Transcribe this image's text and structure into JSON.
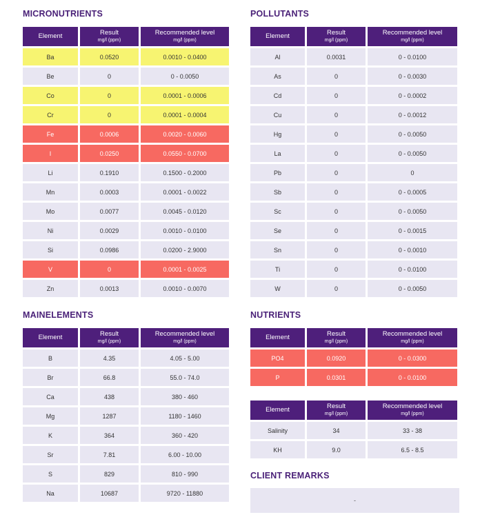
{
  "columns": {
    "element": "Element",
    "result": "Result",
    "result_unit": "mg/l (ppm)",
    "recommended": "Recommended level",
    "recommended_unit": "mg/l (ppm)"
  },
  "micronutrients": {
    "title": "MICRONUTRIENTS",
    "rows": [
      {
        "element": "Ba",
        "result": "0.0520",
        "recommended": "0.0010 - 0.0400",
        "status": "warn"
      },
      {
        "element": "Be",
        "result": "0",
        "recommended": "0 - 0.0050",
        "status": "ok"
      },
      {
        "element": "Co",
        "result": "0",
        "recommended": "0.0001 - 0.0006",
        "status": "warn"
      },
      {
        "element": "Cr",
        "result": "0",
        "recommended": "0.0001 - 0.0004",
        "status": "warn"
      },
      {
        "element": "Fe",
        "result": "0.0006",
        "recommended": "0.0020 - 0.0060",
        "status": "bad"
      },
      {
        "element": "I",
        "result": "0.0250",
        "recommended": "0.0550 - 0.0700",
        "status": "bad"
      },
      {
        "element": "Li",
        "result": "0.1910",
        "recommended": "0.1500 - 0.2000",
        "status": "ok"
      },
      {
        "element": "Mn",
        "result": "0.0003",
        "recommended": "0.0001 - 0.0022",
        "status": "ok"
      },
      {
        "element": "Mo",
        "result": "0.0077",
        "recommended": "0.0045 - 0.0120",
        "status": "ok"
      },
      {
        "element": "Ni",
        "result": "0.0029",
        "recommended": "0.0010 - 0.0100",
        "status": "ok"
      },
      {
        "element": "Si",
        "result": "0.0986",
        "recommended": "0.0200 - 2.9000",
        "status": "ok"
      },
      {
        "element": "V",
        "result": "0",
        "recommended": "0.0001 - 0.0025",
        "status": "bad"
      },
      {
        "element": "Zn",
        "result": "0.0013",
        "recommended": "0.0010 - 0.0070",
        "status": "ok"
      }
    ]
  },
  "pollutants": {
    "title": "POLLUTANTS",
    "rows": [
      {
        "element": "Al",
        "result": "0.0031",
        "recommended": "0 - 0.0100",
        "status": "ok"
      },
      {
        "element": "As",
        "result": "0",
        "recommended": "0 - 0.0030",
        "status": "ok"
      },
      {
        "element": "Cd",
        "result": "0",
        "recommended": "0 - 0.0002",
        "status": "ok"
      },
      {
        "element": "Cu",
        "result": "0",
        "recommended": "0 - 0.0012",
        "status": "ok"
      },
      {
        "element": "Hg",
        "result": "0",
        "recommended": "0 - 0.0050",
        "status": "ok"
      },
      {
        "element": "La",
        "result": "0",
        "recommended": "0 - 0.0050",
        "status": "ok"
      },
      {
        "element": "Pb",
        "result": "0",
        "recommended": "0",
        "status": "ok"
      },
      {
        "element": "Sb",
        "result": "0",
        "recommended": "0 - 0.0005",
        "status": "ok"
      },
      {
        "element": "Sc",
        "result": "0",
        "recommended": "0 - 0.0050",
        "status": "ok"
      },
      {
        "element": "Se",
        "result": "0",
        "recommended": "0 - 0.0015",
        "status": "ok"
      },
      {
        "element": "Sn",
        "result": "0",
        "recommended": "0 - 0.0010",
        "status": "ok"
      },
      {
        "element": "Ti",
        "result": "0",
        "recommended": "0 - 0.0100",
        "status": "ok"
      },
      {
        "element": "W",
        "result": "0",
        "recommended": "0 - 0.0050",
        "status": "ok"
      }
    ]
  },
  "mainelements": {
    "title": "MAINELEMENTS",
    "rows": [
      {
        "element": "B",
        "result": "4.35",
        "recommended": "4.05 - 5.00",
        "status": "ok"
      },
      {
        "element": "Br",
        "result": "66.8",
        "recommended": "55.0 - 74.0",
        "status": "ok"
      },
      {
        "element": "Ca",
        "result": "438",
        "recommended": "380 - 460",
        "status": "ok"
      },
      {
        "element": "Mg",
        "result": "1287",
        "recommended": "1180 - 1460",
        "status": "ok"
      },
      {
        "element": "K",
        "result": "364",
        "recommended": "360 - 420",
        "status": "ok"
      },
      {
        "element": "Sr",
        "result": "7.81",
        "recommended": "6.00 - 10.00",
        "status": "ok"
      },
      {
        "element": "S",
        "result": "829",
        "recommended": "810 - 990",
        "status": "ok"
      },
      {
        "element": "Na",
        "result": "10687",
        "recommended": "9720 - 11880",
        "status": "ok"
      }
    ]
  },
  "nutrients": {
    "title": "NUTRIENTS",
    "rows": [
      {
        "element": "PO4",
        "result": "0.0920",
        "recommended": "0 - 0.0300",
        "status": "bad"
      },
      {
        "element": "P",
        "result": "0.0301",
        "recommended": "0 - 0.0100",
        "status": "bad"
      }
    ]
  },
  "other": {
    "rows": [
      {
        "element": "Salinity",
        "result": "34",
        "recommended": "33 - 38",
        "status": "ok"
      },
      {
        "element": "KH",
        "result": "9.0",
        "recommended": "6.5 - 8.5",
        "status": "ok"
      }
    ]
  },
  "client_remarks": {
    "title": "CLIENT REMARKS",
    "text": "-"
  },
  "colors": {
    "header_bg": "#4e1f7b",
    "title_text": "#4a2178",
    "row_ok": "#e8e6f2",
    "row_warn": "#f7f471",
    "row_bad": "#f76961"
  }
}
